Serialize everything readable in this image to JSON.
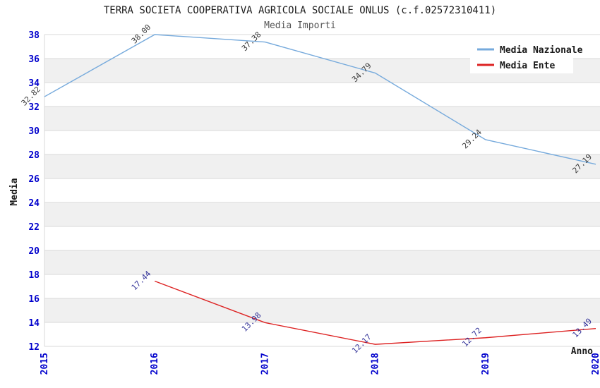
{
  "header": {
    "title": "TERRA SOCIETA COOPERATIVA AGRICOLA SOCIALE ONLUS (c.f.02572310411)",
    "subtitle": "Media Importi"
  },
  "chart_data": {
    "type": "line",
    "title": "TERRA SOCIETA COOPERATIVA AGRICOLA SOCIALE ONLUS (c.f.02572310411)",
    "subtitle": "Media Importi",
    "xlabel": "Anno",
    "ylabel": "Media",
    "x": [
      2015,
      2016,
      2017,
      2018,
      2019,
      2020
    ],
    "xlim": [
      2015,
      2020
    ],
    "ylim": [
      12,
      38
    ],
    "yticks": [
      12,
      14,
      16,
      18,
      20,
      22,
      24,
      26,
      28,
      30,
      32,
      34,
      36,
      38
    ],
    "grid": true,
    "legend": {
      "position": "top-right",
      "entries": [
        "Media Nazionale",
        "Media Ente"
      ]
    },
    "series": [
      {
        "name": "Media Nazionale",
        "color": "#76aadc",
        "label_color": "#3a3a3a",
        "x": [
          2015,
          2016,
          2017,
          2018,
          2019,
          2020
        ],
        "values": [
          32.82,
          38.0,
          37.38,
          34.79,
          29.24,
          27.19
        ],
        "labels": [
          "32.82",
          "38.00",
          "37.38",
          "34.79",
          "29.24",
          "27.19"
        ]
      },
      {
        "name": "Media Ente",
        "color": "#dd2222",
        "label_color": "#333399",
        "x": [
          2016,
          2017,
          2018,
          2019,
          2020
        ],
        "values": [
          17.44,
          13.98,
          12.17,
          12.72,
          13.49
        ],
        "labels": [
          "17.44",
          "13.98",
          "12.17",
          "12.72",
          "13.49"
        ]
      }
    ],
    "colors": {
      "band": "#f0f0f0",
      "grid": "#d9d9d9",
      "tick_label": "#0000cc",
      "axis_label": "#1a1a1a",
      "title": "#1a1a1a",
      "subtitle": "#555555",
      "legend_bg": "#ffffff"
    }
  }
}
